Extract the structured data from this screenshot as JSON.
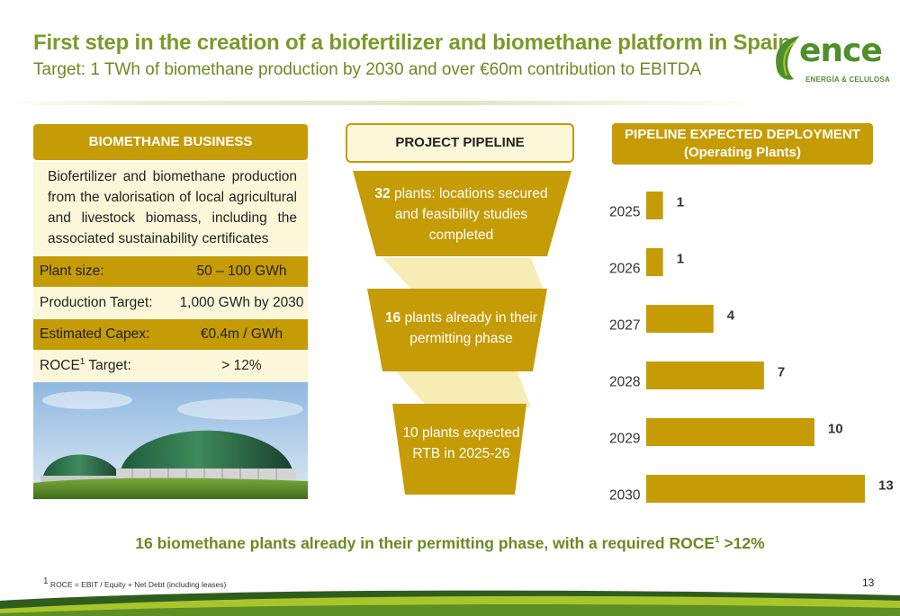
{
  "header": {
    "title": "First step in the creation of a biofertilizer and biomethane platform in Spain",
    "subtitle": "Target: 1 TWh of biomethane production by 2030 and over €60m contribution to EBITDA"
  },
  "logo": {
    "word": "ence",
    "tagline": "ENERGÍA & CELULOSA",
    "leaf_icon": "leaf-icon",
    "color": "#4f8f2a"
  },
  "business": {
    "header": "BIOMETHANE BUSINESS",
    "description": "Biofertilizer and biomethane production from the valorisation of local agricultural and livestock biomass, including the associated sustainability certificates",
    "specs": [
      {
        "label": "Plant size:",
        "value": "50 – 100 GWh"
      },
      {
        "label": "Production Target:",
        "value": "1,000 GWh by 2030"
      },
      {
        "label": "Estimated Capex:",
        "value": "€0.4m / GWh"
      },
      {
        "label": "ROCE",
        "sup": "1",
        "label_tail": " Target:",
        "value": "> 12%"
      }
    ],
    "photo_icon": "biogas-dome-photo"
  },
  "pipeline": {
    "header": "PROJECT PIPELINE",
    "stages": [
      {
        "num": "32",
        "text": " plants: locations secured and feasibility studies completed"
      },
      {
        "num": "16",
        "text": " plants already in their permitting phase"
      },
      {
        "num": "",
        "text": "10 plants expected RTB in 2025-26"
      }
    ]
  },
  "deployment": {
    "header_line1": "PIPELINE EXPECTED DEPLOYMENT",
    "header_line2": "(Operating Plants)"
  },
  "chart_data": {
    "type": "bar",
    "orientation": "horizontal",
    "categories": [
      "2025",
      "2026",
      "2027",
      "2028",
      "2029",
      "2030"
    ],
    "values": [
      1,
      1,
      4,
      7,
      10,
      13
    ],
    "title": "PIPELINE EXPECTED DEPLOYMENT (Operating Plants)",
    "xlim": [
      0,
      13
    ],
    "bar_color": "#c59b06",
    "grid": false,
    "data_labels": true
  },
  "footer": {
    "message": "16 biomethane plants already in their permitting phase, with a required ROCE",
    "message_sup": "1",
    "message_tail": " >12%",
    "footnote_sup": "1",
    "footnote": " ROCE = EBIT / Equity + Net Debt (including leases)",
    "page": "13"
  },
  "colors": {
    "gold": "#c59b06",
    "cream": "#fdf7da",
    "green_title": "#7b9a2a",
    "band_green": "#2f5d1e",
    "band_lime": "#a9c52c"
  }
}
